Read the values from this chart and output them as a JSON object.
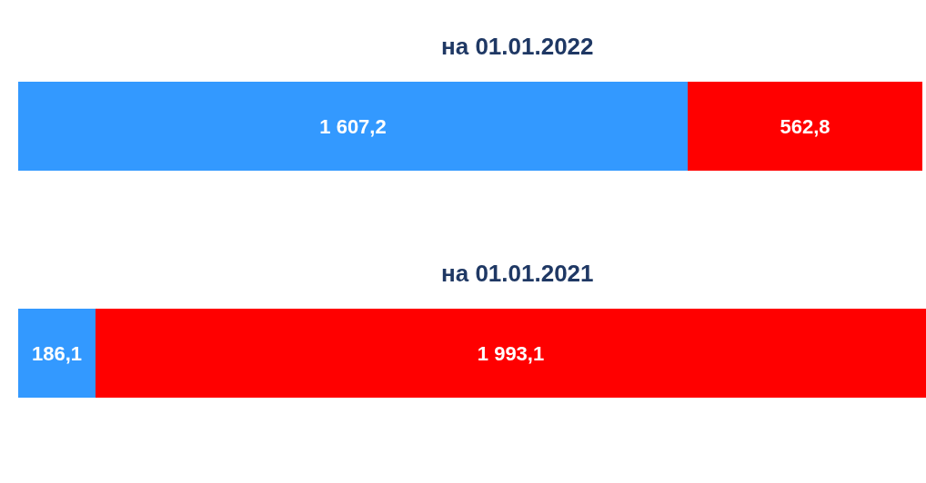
{
  "chart_data": {
    "type": "bar",
    "orientation": "horizontal",
    "stacked": true,
    "categories": [
      "на 01.01.2022",
      "на 01.01.2021"
    ],
    "series": [
      {
        "color": "#3399ff",
        "values": [
          1607.2,
          186.1
        ],
        "value_labels": [
          "1 607,2",
          "186,1"
        ]
      },
      {
        "color": "#ff0000",
        "values": [
          562.8,
          1993.1
        ],
        "value_labels": [
          "562,8",
          "1 993,1"
        ]
      }
    ]
  }
}
